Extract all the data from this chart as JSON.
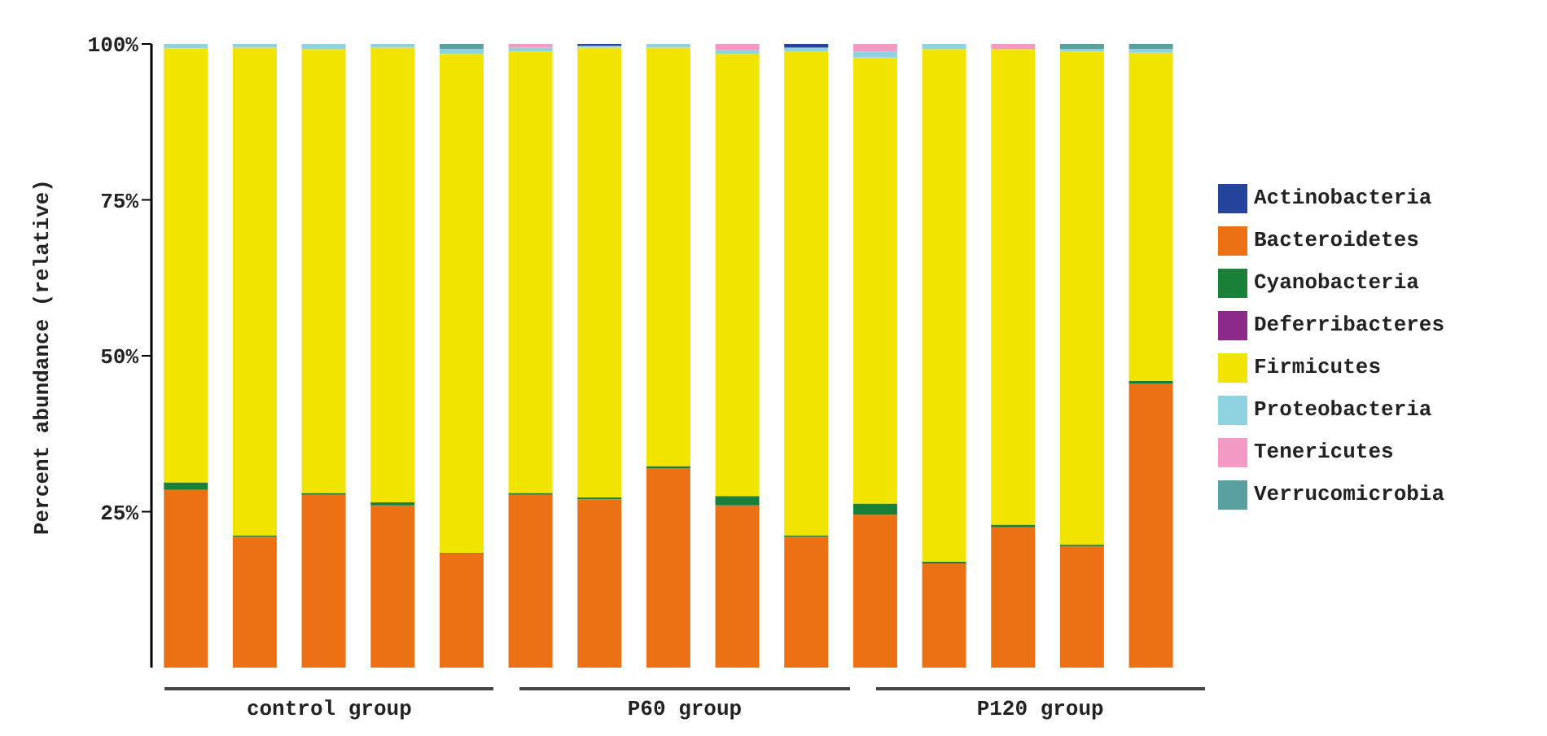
{
  "chart_data": {
    "type": "bar",
    "stacked": true,
    "ylabel": "Percent abundance (relative)",
    "categories": [
      null,
      null,
      null,
      null,
      null,
      null,
      null,
      null,
      null,
      null,
      null,
      null,
      null,
      null,
      null
    ],
    "series": [
      {
        "name": "Bacteroidetes",
        "color": "#ec7014",
        "values": [
          28.5,
          21,
          27.7,
          26,
          18.3,
          27.7,
          27,
          32,
          26,
          21,
          24.5,
          16.7,
          22.5,
          19.5,
          45.5
        ]
      },
      {
        "name": "Cyanobacteria",
        "color": "#1a7f37",
        "values": [
          1.2,
          0.2,
          0.3,
          0.5,
          0.1,
          0.3,
          0.3,
          0.3,
          1.5,
          0.2,
          1.8,
          0.3,
          0.4,
          0.2,
          0.5
        ]
      },
      {
        "name": "Firmicutes",
        "color": "#f0e400",
        "values": [
          69.6,
          78.2,
          71.2,
          72.9,
          80.0,
          70.8,
          72.1,
          67.1,
          70.9,
          77.6,
          71.5,
          82.2,
          76.3,
          79.1,
          52.6
        ]
      },
      {
        "name": "Proteobacteria",
        "color": "#8fd3e0",
        "values": [
          0.7,
          0.6,
          0.8,
          0.6,
          0.8,
          0.6,
          0.3,
          0.6,
          0.6,
          0.6,
          1.0,
          0.8,
          0,
          0.4,
          0.6
        ]
      },
      {
        "name": "Actinobacteria",
        "color": "#23449a",
        "values": [
          0,
          0,
          0,
          0,
          0,
          0,
          0.3,
          0,
          0,
          0.6,
          0,
          0,
          0,
          0,
          0
        ]
      },
      {
        "name": "Tenericutes",
        "color": "#f29ac4",
        "values": [
          0,
          0,
          0,
          0,
          0,
          0.6,
          0,
          0,
          1.0,
          0,
          1.2,
          0,
          0.8,
          0,
          0
        ]
      },
      {
        "name": "Verrucomicrobia",
        "color": "#5aa0a0",
        "values": [
          0,
          0,
          0,
          0,
          0.8,
          0,
          0,
          0,
          0,
          0,
          0,
          0,
          0,
          0.8,
          0.8
        ]
      },
      {
        "name": "Deferribacteres",
        "color": "#8b2a8a",
        "values": [
          0,
          0,
          0,
          0,
          0,
          0,
          0,
          0,
          0,
          0,
          0,
          0,
          0,
          0,
          0
        ]
      }
    ],
    "ylim": [
      0,
      100
    ],
    "yticks": [
      {
        "value": 25,
        "label": "25%"
      },
      {
        "value": 50,
        "label": "50%"
      },
      {
        "value": 75,
        "label": "75%"
      },
      {
        "value": 100,
        "label": "100%"
      }
    ],
    "grid": false,
    "legend": "right",
    "annotations": [
      "control group",
      "P60 group",
      "P120 group"
    ]
  }
}
